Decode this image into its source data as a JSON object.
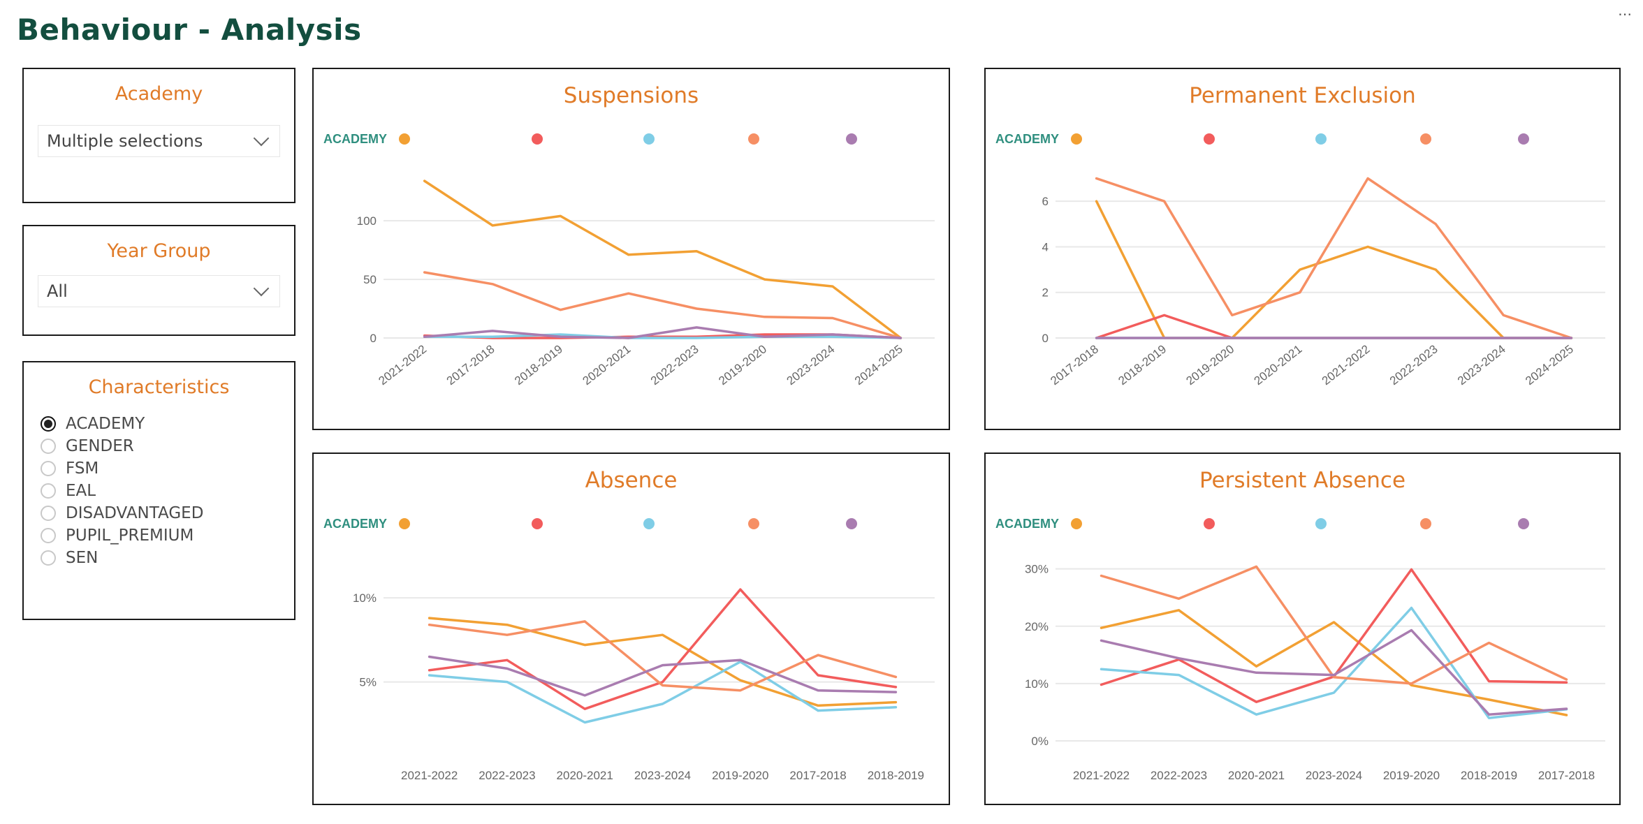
{
  "header": {
    "title": "Behaviour - Analysis",
    "more_menu": "⋯"
  },
  "filters": {
    "academy": {
      "title": "Academy",
      "selected": "Multiple selections"
    },
    "year_group": {
      "title": "Year Group",
      "selected": "All"
    },
    "characteristics": {
      "title": "Characteristics",
      "options": [
        {
          "label": "ACADEMY",
          "selected": true
        },
        {
          "label": "GENDER",
          "selected": false
        },
        {
          "label": "FSM",
          "selected": false
        },
        {
          "label": "EAL",
          "selected": false
        },
        {
          "label": "DISADVANTAGED",
          "selected": false
        },
        {
          "label": "PUPIL_PREMIUM",
          "selected": false
        },
        {
          "label": "SEN",
          "selected": false
        }
      ]
    }
  },
  "colors": {
    "title": "#134e3f",
    "accent": "#e07b28",
    "legend_label": "#2f8f7f",
    "series": [
      "#f2a033",
      "#f25c5c",
      "#7fcde6",
      "#f68f64",
      "#a97cb0"
    ]
  },
  "chart_data": [
    {
      "id": "suspensions",
      "type": "line",
      "title": "Suspensions",
      "legend_title": "ACADEMY",
      "legend_placement": "top-left",
      "x_tick_rotation": "rotated",
      "categories": [
        "2021-2022",
        "2017-2018",
        "2018-2019",
        "2020-2021",
        "2022-2023",
        "2019-2020",
        "2023-2024",
        "2024-2025"
      ],
      "ylim": [
        0,
        140
      ],
      "yticks": [
        0,
        50,
        100
      ],
      "ytick_labels": [
        "0",
        "50",
        "100"
      ],
      "grid": true,
      "series": [
        {
          "name": "",
          "color": "#f2a033",
          "values": [
            134,
            96,
            104,
            71,
            74,
            50,
            44,
            0
          ]
        },
        {
          "name": "",
          "color": "#f25c5c",
          "values": [
            2,
            0,
            0,
            1,
            1,
            3,
            3,
            0
          ]
        },
        {
          "name": "",
          "color": "#7fcde6",
          "values": [
            1,
            1,
            3,
            0,
            0,
            1,
            1,
            0
          ]
        },
        {
          "name": "",
          "color": "#f68f64",
          "values": [
            56,
            46,
            24,
            38,
            25,
            18,
            17,
            0
          ]
        },
        {
          "name": "",
          "color": "#a97cb0",
          "values": [
            1,
            6,
            1,
            0,
            9,
            1,
            3,
            0
          ]
        }
      ]
    },
    {
      "id": "permanent-exclusion",
      "type": "line",
      "title": "Permanent Exclusion",
      "legend_title": "ACADEMY",
      "legend_placement": "top-left",
      "x_tick_rotation": "rotated",
      "categories": [
        "2017-2018",
        "2018-2019",
        "2019-2020",
        "2020-2021",
        "2021-2022",
        "2022-2023",
        "2023-2024",
        "2024-2025"
      ],
      "ylim": [
        0,
        7.2
      ],
      "yticks": [
        0,
        2,
        4,
        6
      ],
      "ytick_labels": [
        "0",
        "2",
        "4",
        "6"
      ],
      "grid": true,
      "series": [
        {
          "name": "",
          "color": "#f2a033",
          "values": [
            6,
            0,
            0,
            3,
            4,
            3,
            0,
            0
          ]
        },
        {
          "name": "",
          "color": "#f25c5c",
          "values": [
            0,
            1,
            0,
            0,
            0,
            0,
            0,
            0
          ]
        },
        {
          "name": "",
          "color": "#7fcde6",
          "values": [
            0,
            0,
            0,
            0,
            0,
            0,
            0,
            0
          ]
        },
        {
          "name": "",
          "color": "#f68f64",
          "values": [
            7,
            6,
            1,
            2,
            7,
            5,
            1,
            0
          ]
        },
        {
          "name": "",
          "color": "#a97cb0",
          "values": [
            0,
            0,
            0,
            0,
            0,
            0,
            0,
            0
          ]
        }
      ]
    },
    {
      "id": "absence",
      "type": "line",
      "title": "Absence",
      "legend_title": "ACADEMY",
      "legend_placement": "top-left",
      "x_tick_rotation": "horizontal",
      "categories": [
        "2021-2022",
        "2022-2023",
        "2020-2021",
        "2023-2024",
        "2019-2020",
        "2017-2018",
        "2018-2019"
      ],
      "ylim": [
        1.5,
        11.5
      ],
      "yticks": [
        5,
        10
      ],
      "ytick_labels": [
        "5%",
        "10%"
      ],
      "grid": true,
      "series": [
        {
          "name": "",
          "color": "#f2a033",
          "values": [
            8.8,
            8.4,
            7.2,
            7.8,
            5.1,
            3.6,
            3.8
          ]
        },
        {
          "name": "",
          "color": "#f25c5c",
          "values": [
            5.7,
            6.3,
            3.4,
            5.0,
            10.5,
            5.4,
            4.7
          ]
        },
        {
          "name": "",
          "color": "#7fcde6",
          "values": [
            5.4,
            5.0,
            2.6,
            3.7,
            6.2,
            3.3,
            3.5
          ]
        },
        {
          "name": "",
          "color": "#f68f64",
          "values": [
            8.4,
            7.8,
            8.6,
            4.8,
            4.5,
            6.6,
            5.3
          ]
        },
        {
          "name": "",
          "color": "#a97cb0",
          "values": [
            6.5,
            5.8,
            4.2,
            6.0,
            6.3,
            4.5,
            4.4
          ]
        }
      ]
    },
    {
      "id": "persistent-absence",
      "type": "line",
      "title": "Persistent Absence",
      "legend_title": "ACADEMY",
      "legend_placement": "top-left",
      "x_tick_rotation": "horizontal",
      "categories": [
        "2021-2022",
        "2022-2023",
        "2020-2021",
        "2023-2024",
        "2019-2020",
        "2018-2019",
        "2017-2018"
      ],
      "ylim": [
        0,
        33
      ],
      "yticks": [
        0,
        10,
        20,
        30
      ],
      "ytick_labels": [
        "0%",
        "10%",
        "20%",
        "30%"
      ],
      "grid": true,
      "series": [
        {
          "name": "",
          "color": "#f2a033",
          "values": [
            19.7,
            22.8,
            13.0,
            20.7,
            9.7,
            7.2,
            4.5
          ]
        },
        {
          "name": "",
          "color": "#f25c5c",
          "values": [
            9.8,
            14.2,
            6.8,
            11.2,
            29.9,
            10.4,
            10.2
          ]
        },
        {
          "name": "",
          "color": "#7fcde6",
          "values": [
            12.5,
            11.5,
            4.6,
            8.4,
            23.2,
            4.0,
            5.5
          ]
        },
        {
          "name": "",
          "color": "#f68f64",
          "values": [
            28.8,
            24.8,
            30.4,
            11.1,
            10.0,
            17.1,
            10.7
          ]
        },
        {
          "name": "",
          "color": "#a97cb0",
          "values": [
            17.5,
            14.4,
            11.9,
            11.5,
            19.3,
            4.6,
            5.6
          ]
        }
      ]
    }
  ]
}
